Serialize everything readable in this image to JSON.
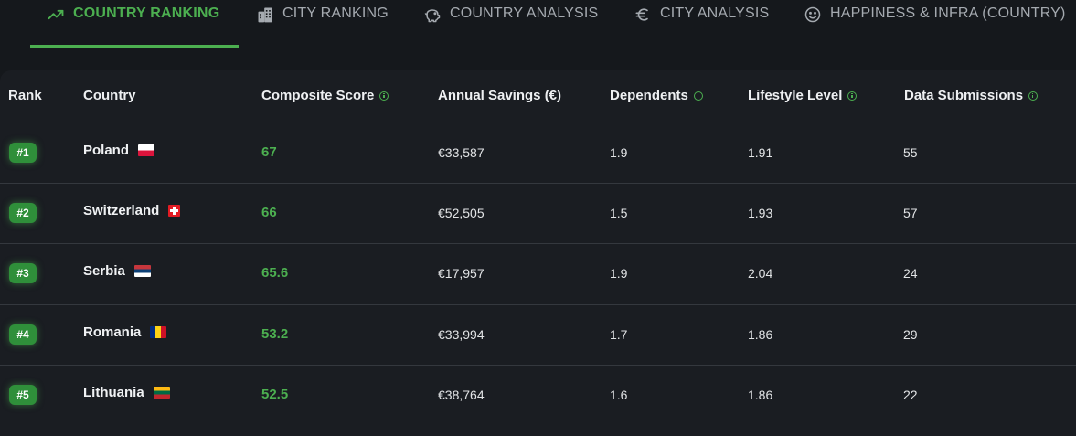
{
  "tabs": [
    {
      "label": "COUNTRY RANKING",
      "icon": "trending-up-icon",
      "active": true
    },
    {
      "label": "CITY RANKING",
      "icon": "building-icon",
      "active": false
    },
    {
      "label": "COUNTRY ANALYSIS",
      "icon": "piggy-bank-icon",
      "active": false
    },
    {
      "label": "CITY ANALYSIS",
      "icon": "euro-icon",
      "active": false
    },
    {
      "label": "HAPPINESS & INFRA (COUNTRY)",
      "icon": "smile-icon",
      "active": false
    }
  ],
  "table": {
    "headers": {
      "rank": "Rank",
      "country": "Country",
      "composite_score": "Composite Score",
      "annual_savings": "Annual Savings (€)",
      "dependents": "Dependents",
      "lifestyle_level": "Lifestyle Level",
      "data_submissions": "Data Submissions"
    },
    "rows": [
      {
        "rank": "#1",
        "country": "Poland",
        "flag": "poland-flag-icon",
        "score": "67",
        "savings": "€33,587",
        "dependents": "1.9",
        "lifestyle": "1.91",
        "submissions": "55"
      },
      {
        "rank": "#2",
        "country": "Switzerland",
        "flag": "switzerland-flag-icon",
        "score": "66",
        "savings": "€52,505",
        "dependents": "1.5",
        "lifestyle": "1.93",
        "submissions": "57"
      },
      {
        "rank": "#3",
        "country": "Serbia",
        "flag": "serbia-flag-icon",
        "score": "65.6",
        "savings": "€17,957",
        "dependents": "1.9",
        "lifestyle": "2.04",
        "submissions": "24"
      },
      {
        "rank": "#4",
        "country": "Romania",
        "flag": "romania-flag-icon",
        "score": "53.2",
        "savings": "€33,994",
        "dependents": "1.7",
        "lifestyle": "1.86",
        "submissions": "29"
      },
      {
        "rank": "#5",
        "country": "Lithuania",
        "flag": "lithuania-flag-icon",
        "score": "52.5",
        "savings": "€38,764",
        "dependents": "1.6",
        "lifestyle": "1.86",
        "submissions": "22"
      }
    ]
  },
  "colors": {
    "accent": "#4caf50",
    "background": "#15181c",
    "panel": "#1a1d22"
  }
}
